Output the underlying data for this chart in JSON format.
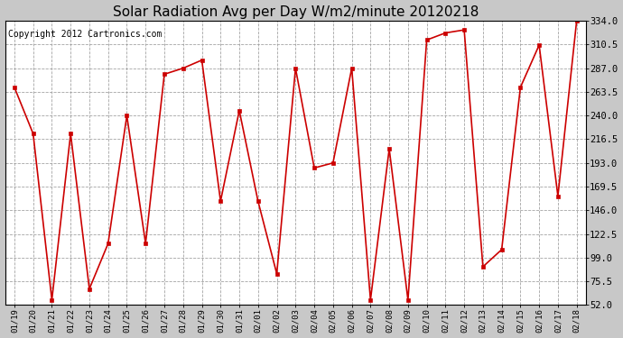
{
  "title": "Solar Radiation Avg per Day W/m2/minute 20120218",
  "copyright": "Copyright 2012 Cartronics.com",
  "dates": [
    "01/19",
    "01/20",
    "01/21",
    "01/22",
    "01/23",
    "01/24",
    "01/25",
    "01/26",
    "01/27",
    "01/28",
    "01/29",
    "01/30",
    "01/31",
    "02/01",
    "02/02",
    "02/03",
    "02/04",
    "02/05",
    "02/06",
    "02/07",
    "02/08",
    "02/09",
    "02/10",
    "02/11",
    "02/12",
    "02/13",
    "02/14",
    "02/15",
    "02/16",
    "02/17",
    "02/18"
  ],
  "values": [
    268,
    222,
    57,
    222,
    68,
    113,
    240,
    113,
    281,
    287,
    295,
    155,
    245,
    155,
    83,
    287,
    188,
    193,
    287,
    57,
    207,
    57,
    315,
    322,
    325,
    90,
    107,
    268,
    310,
    160,
    334
  ],
  "line_color": "#cc0000",
  "bg_color": "#c8c8c8",
  "plot_bg_color": "#ffffff",
  "grid_color": "#999999",
  "ylim": [
    52.0,
    334.0
  ],
  "yticks": [
    52.0,
    75.5,
    99.0,
    122.5,
    146.0,
    169.5,
    193.0,
    216.5,
    240.0,
    263.5,
    287.0,
    310.5,
    334.0
  ],
  "title_fontsize": 11,
  "copyright_fontsize": 7
}
